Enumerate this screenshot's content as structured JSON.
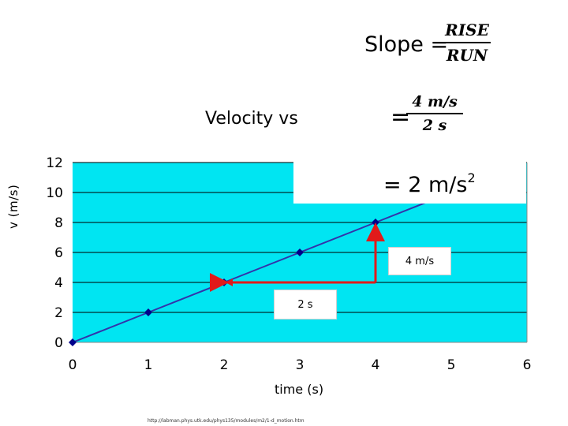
{
  "slide": {
    "slope_lhs": "Slope =",
    "slope_num": "RISE",
    "slope_den": "RUN",
    "eq_sign": "=",
    "rate_num": "4 m/s",
    "rate_den": "2 s",
    "result_prefix": "= 2 m/s",
    "result_exp": "2",
    "rise_box": "4 m/s",
    "run_box": "2 s",
    "source": "http://labman.phys.utk.edu/phys135/modules/m2/1-d_motion.htm"
  },
  "chart_data": {
    "type": "line",
    "title": "Velocity vs",
    "xlabel": "time (s)",
    "ylabel": "v (m/s)",
    "x": [
      0,
      1,
      2,
      3,
      4
    ],
    "series": [
      {
        "values": [
          0,
          2,
          4,
          6,
          8
        ],
        "trend_end": [
          4.7,
          9.4
        ]
      }
    ],
    "xlim": [
      0,
      6
    ],
    "ylim": [
      0,
      12
    ],
    "xticks": [
      "0",
      "1",
      "2",
      "3",
      "4",
      "5",
      "6"
    ],
    "yticks": [
      "0",
      "2",
      "4",
      "6",
      "8",
      "10",
      "12"
    ],
    "grid": true,
    "colors": {
      "plot_bg": "#00e5f2",
      "line": "#3333aa",
      "marker": "#00008b",
      "annotation_arrow": "#e11a1a",
      "grid": "#000000"
    },
    "run_arrow": {
      "from": [
        2,
        4
      ],
      "to": [
        4,
        4
      ]
    },
    "rise_arrow": {
      "from": [
        4,
        4
      ],
      "to": [
        4,
        8
      ]
    }
  }
}
